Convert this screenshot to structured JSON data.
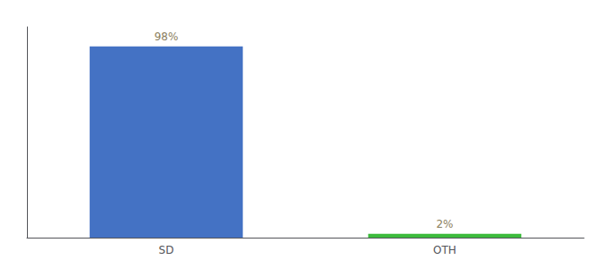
{
  "chart_data": {
    "type": "bar",
    "categories": [
      "SD",
      "OTH"
    ],
    "values": [
      98,
      2
    ],
    "value_labels": [
      "98%",
      "2%"
    ],
    "colors": [
      "#4472c4",
      "#3dbb3d"
    ],
    "ylim": [
      0,
      108
    ],
    "yticks": [],
    "grid": false,
    "data_labels": true,
    "tick_labels": "x"
  }
}
